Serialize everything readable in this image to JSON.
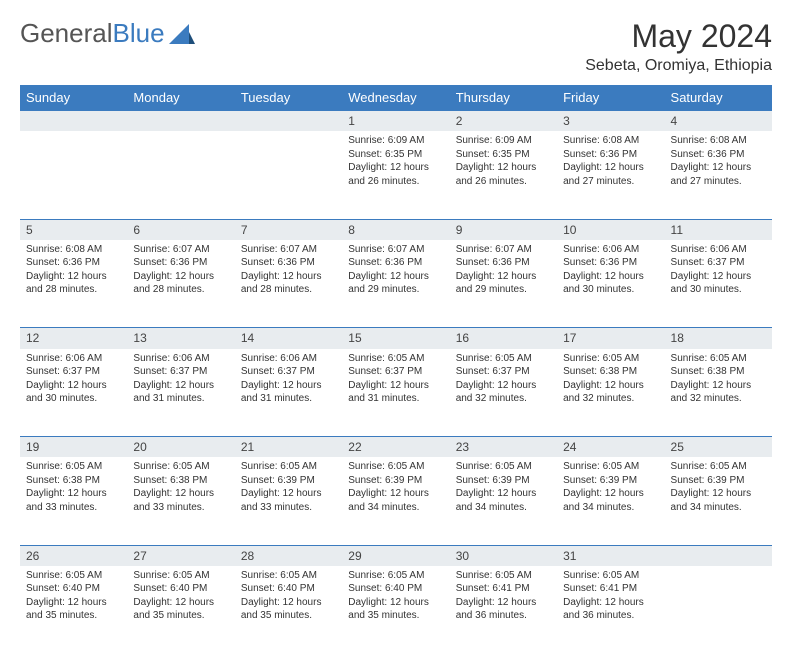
{
  "logo": {
    "text1": "General",
    "text2": "Blue"
  },
  "title": "May 2024",
  "location": "Sebeta, Oromiya, Ethiopia",
  "weekdays": [
    "Sunday",
    "Monday",
    "Tuesday",
    "Wednesday",
    "Thursday",
    "Friday",
    "Saturday"
  ],
  "colors": {
    "header_bg": "#3b7bbf",
    "header_text": "#ffffff",
    "daynum_bg": "#e8ecef",
    "border": "#3b7bbf",
    "text": "#333333",
    "background": "#ffffff"
  },
  "weeks": [
    {
      "nums": [
        "",
        "",
        "",
        "1",
        "2",
        "3",
        "4"
      ],
      "cells": [
        "",
        "",
        "",
        "Sunrise: 6:09 AM\nSunset: 6:35 PM\nDaylight: 12 hours and 26 minutes.",
        "Sunrise: 6:09 AM\nSunset: 6:35 PM\nDaylight: 12 hours and 26 minutes.",
        "Sunrise: 6:08 AM\nSunset: 6:36 PM\nDaylight: 12 hours and 27 minutes.",
        "Sunrise: 6:08 AM\nSunset: 6:36 PM\nDaylight: 12 hours and 27 minutes."
      ]
    },
    {
      "nums": [
        "5",
        "6",
        "7",
        "8",
        "9",
        "10",
        "11"
      ],
      "cells": [
        "Sunrise: 6:08 AM\nSunset: 6:36 PM\nDaylight: 12 hours and 28 minutes.",
        "Sunrise: 6:07 AM\nSunset: 6:36 PM\nDaylight: 12 hours and 28 minutes.",
        "Sunrise: 6:07 AM\nSunset: 6:36 PM\nDaylight: 12 hours and 28 minutes.",
        "Sunrise: 6:07 AM\nSunset: 6:36 PM\nDaylight: 12 hours and 29 minutes.",
        "Sunrise: 6:07 AM\nSunset: 6:36 PM\nDaylight: 12 hours and 29 minutes.",
        "Sunrise: 6:06 AM\nSunset: 6:36 PM\nDaylight: 12 hours and 30 minutes.",
        "Sunrise: 6:06 AM\nSunset: 6:37 PM\nDaylight: 12 hours and 30 minutes."
      ]
    },
    {
      "nums": [
        "12",
        "13",
        "14",
        "15",
        "16",
        "17",
        "18"
      ],
      "cells": [
        "Sunrise: 6:06 AM\nSunset: 6:37 PM\nDaylight: 12 hours and 30 minutes.",
        "Sunrise: 6:06 AM\nSunset: 6:37 PM\nDaylight: 12 hours and 31 minutes.",
        "Sunrise: 6:06 AM\nSunset: 6:37 PM\nDaylight: 12 hours and 31 minutes.",
        "Sunrise: 6:05 AM\nSunset: 6:37 PM\nDaylight: 12 hours and 31 minutes.",
        "Sunrise: 6:05 AM\nSunset: 6:37 PM\nDaylight: 12 hours and 32 minutes.",
        "Sunrise: 6:05 AM\nSunset: 6:38 PM\nDaylight: 12 hours and 32 minutes.",
        "Sunrise: 6:05 AM\nSunset: 6:38 PM\nDaylight: 12 hours and 32 minutes."
      ]
    },
    {
      "nums": [
        "19",
        "20",
        "21",
        "22",
        "23",
        "24",
        "25"
      ],
      "cells": [
        "Sunrise: 6:05 AM\nSunset: 6:38 PM\nDaylight: 12 hours and 33 minutes.",
        "Sunrise: 6:05 AM\nSunset: 6:38 PM\nDaylight: 12 hours and 33 minutes.",
        "Sunrise: 6:05 AM\nSunset: 6:39 PM\nDaylight: 12 hours and 33 minutes.",
        "Sunrise: 6:05 AM\nSunset: 6:39 PM\nDaylight: 12 hours and 34 minutes.",
        "Sunrise: 6:05 AM\nSunset: 6:39 PM\nDaylight: 12 hours and 34 minutes.",
        "Sunrise: 6:05 AM\nSunset: 6:39 PM\nDaylight: 12 hours and 34 minutes.",
        "Sunrise: 6:05 AM\nSunset: 6:39 PM\nDaylight: 12 hours and 34 minutes."
      ]
    },
    {
      "nums": [
        "26",
        "27",
        "28",
        "29",
        "30",
        "31",
        ""
      ],
      "cells": [
        "Sunrise: 6:05 AM\nSunset: 6:40 PM\nDaylight: 12 hours and 35 minutes.",
        "Sunrise: 6:05 AM\nSunset: 6:40 PM\nDaylight: 12 hours and 35 minutes.",
        "Sunrise: 6:05 AM\nSunset: 6:40 PM\nDaylight: 12 hours and 35 minutes.",
        "Sunrise: 6:05 AM\nSunset: 6:40 PM\nDaylight: 12 hours and 35 minutes.",
        "Sunrise: 6:05 AM\nSunset: 6:41 PM\nDaylight: 12 hours and 36 minutes.",
        "Sunrise: 6:05 AM\nSunset: 6:41 PM\nDaylight: 12 hours and 36 minutes.",
        ""
      ]
    }
  ]
}
